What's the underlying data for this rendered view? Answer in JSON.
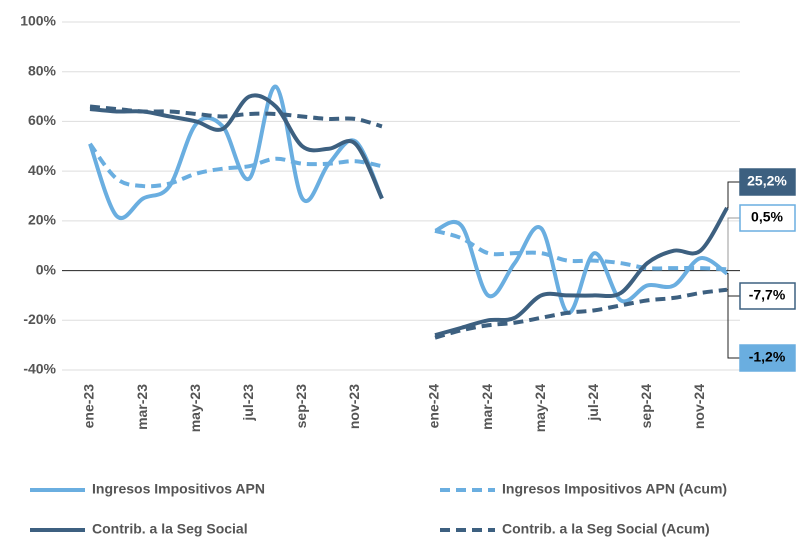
{
  "chart_data": {
    "type": "line",
    "categories": [
      "ene-23",
      null,
      "mar-23",
      null,
      "may-23",
      null,
      "jul-23",
      null,
      "sep-23",
      null,
      "nov-23",
      null,
      null,
      "ene-24",
      null,
      "mar-24",
      null,
      "may-24",
      null,
      "jul-24",
      null,
      "sep-24",
      null,
      "nov-24",
      null
    ],
    "series": [
      {
        "name": "Ingresos Impositivos APN",
        "color": "#6aaee0",
        "dash": false,
        "values": [
          51,
          22,
          29,
          34,
          59,
          58,
          37,
          74,
          29,
          43,
          52,
          29,
          null,
          16,
          18,
          -10,
          3,
          17,
          -17,
          7,
          -12,
          -6,
          -6,
          5,
          -1.2
        ],
        "value_labels": [
          null,
          null,
          null,
          null,
          null,
          null,
          null,
          null,
          null,
          null,
          null,
          null,
          null,
          null,
          null,
          null,
          null,
          null,
          null,
          null,
          null,
          null,
          null,
          null,
          "-1,2%"
        ]
      },
      {
        "name": "Ingresos Impositivos APN (Acum)",
        "color": "#6aaee0",
        "dash": true,
        "values": [
          51,
          37,
          34,
          35,
          39,
          41,
          42,
          45,
          43,
          43,
          44,
          42,
          null,
          16,
          13,
          7,
          7,
          7,
          4,
          4,
          3,
          1,
          1,
          1,
          0.5
        ],
        "value_labels": [
          null,
          null,
          null,
          null,
          null,
          null,
          null,
          null,
          null,
          null,
          null,
          null,
          null,
          null,
          null,
          null,
          null,
          null,
          null,
          null,
          null,
          null,
          null,
          null,
          "0,5%"
        ]
      },
      {
        "name": "Contrib. a la Seg Social",
        "color": "#3d6080",
        "dash": false,
        "values": [
          65,
          64,
          64,
          62,
          60,
          57,
          70,
          66,
          50,
          49,
          51,
          29,
          null,
          -26,
          -23,
          -20,
          -19,
          -10,
          -10,
          -10,
          -9,
          3,
          8,
          8,
          25.2
        ],
        "value_labels": [
          null,
          null,
          null,
          null,
          null,
          null,
          null,
          null,
          null,
          null,
          null,
          null,
          null,
          null,
          null,
          null,
          null,
          null,
          null,
          null,
          null,
          null,
          null,
          null,
          "25,2%"
        ]
      },
      {
        "name": "Contrib. a la Seg Social (Acum)",
        "color": "#3d6080",
        "dash": true,
        "values": [
          66,
          65,
          64,
          64,
          63,
          62,
          63,
          63,
          62,
          61,
          61,
          58,
          null,
          -27,
          -24,
          -22,
          -21,
          -19,
          -17,
          -16,
          -14,
          -12,
          -11,
          -9,
          -7.7
        ],
        "value_labels": [
          null,
          null,
          null,
          null,
          null,
          null,
          null,
          null,
          null,
          null,
          null,
          null,
          null,
          null,
          null,
          null,
          null,
          null,
          null,
          null,
          null,
          null,
          null,
          null,
          "-7,7%"
        ]
      }
    ],
    "ylim": [
      -40,
      100
    ],
    "yticks": [
      {
        "value": -40,
        "label": "-40%"
      },
      {
        "value": -20,
        "label": "-20%"
      },
      {
        "value": 0,
        "label": "0%"
      },
      {
        "value": 20,
        "label": "20%"
      },
      {
        "value": 40,
        "label": "40%"
      },
      {
        "value": 60,
        "label": "60%"
      },
      {
        "value": 80,
        "label": "80%"
      },
      {
        "value": 100,
        "label": "100%"
      }
    ],
    "grid": true
  }
}
